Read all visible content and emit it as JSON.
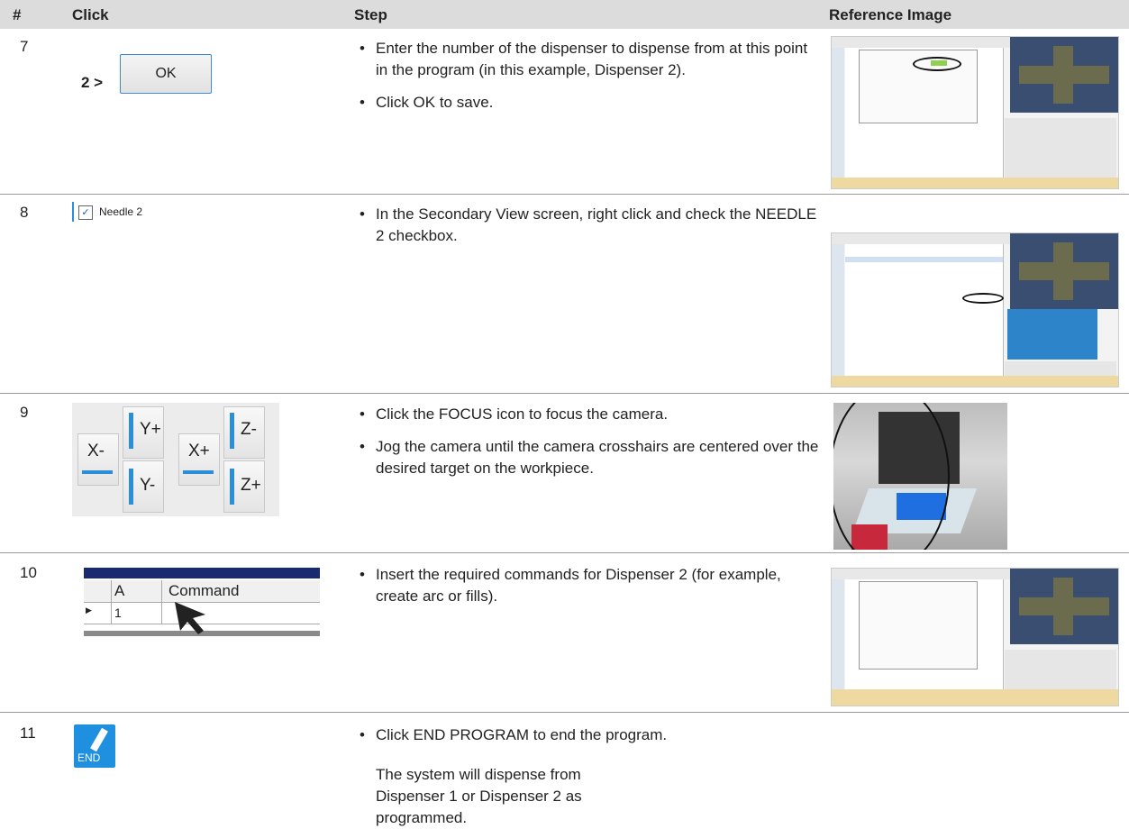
{
  "table": {
    "header": [
      "#",
      "Click",
      "Step",
      "Reference Image"
    ],
    "rows": [
      {
        "number": "7",
        "click": {
          "prefix": "2 >",
          "button": "OK"
        },
        "steps": [
          "Enter the number of the dispenser to dispense from at this point in the program (in this example, Dispenser 2).",
          "Click OK to save."
        ]
      },
      {
        "number": "8",
        "click": {
          "checkbox": "Needle 2"
        },
        "steps": [
          "In the Secondary View screen, right click and check the NEEDLE 2 checkbox."
        ]
      },
      {
        "number": "9",
        "click": {
          "buttons": [
            "X-",
            "Y+",
            "X+",
            "Z-",
            "Y-",
            "Z+"
          ]
        },
        "steps": [
          "Click the FOCUS icon to focus the camera.",
          "Jog the camera until the camera crosshairs are centered over the desired target on the workpiece."
        ]
      },
      {
        "number": "10",
        "click": {
          "columns": [
            "A",
            "Command"
          ],
          "row": "1"
        },
        "steps": [
          "Insert the required commands for Dispenser 2 (for example, create arc or fills)."
        ]
      },
      {
        "number": "11",
        "click": {
          "icon": "END"
        },
        "steps": [
          "Click END PROGRAM to end the program."
        ],
        "note": "The system will dispense from Dispenser 1 or Dispenser 2 as programmed."
      }
    ]
  }
}
